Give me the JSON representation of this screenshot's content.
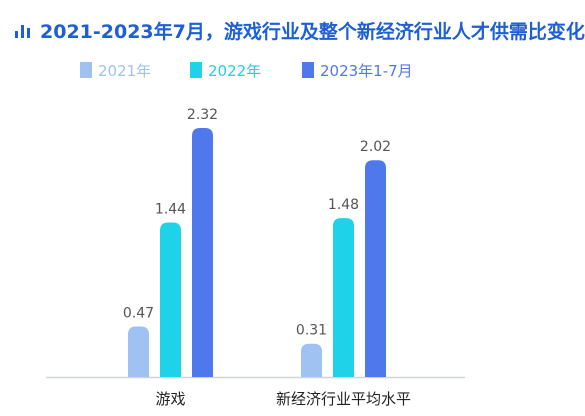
{
  "title": "2021-2023年7月，游戏行业及整个新经济行业人才供需比变化",
  "chart_data": {
    "type": "bar",
    "title": "2021-2023年7月，游戏行业及整个新经济行业人才供需比变化",
    "categories": [
      "游戏",
      "新经济行业平均水平"
    ],
    "series": [
      {
        "name": "2021年",
        "color": "#9fc2f2",
        "values": [
          0.47,
          0.31
        ]
      },
      {
        "name": "2022年",
        "color": "#1ed3e9",
        "values": [
          1.44,
          1.48
        ]
      },
      {
        "name": "2023年1-7月",
        "color": "#4f78ec",
        "values": [
          2.32,
          2.02
        ]
      }
    ],
    "value_labels": [
      [
        "0.47",
        "0.31"
      ],
      [
        "1.44",
        "1.48"
      ],
      [
        "2.32",
        "2.02"
      ]
    ],
    "ylim": [
      0,
      2.32
    ],
    "legend": "top",
    "grid": false
  },
  "colors": {
    "title": "#1d5fd6",
    "axis": "#d0d4da"
  }
}
